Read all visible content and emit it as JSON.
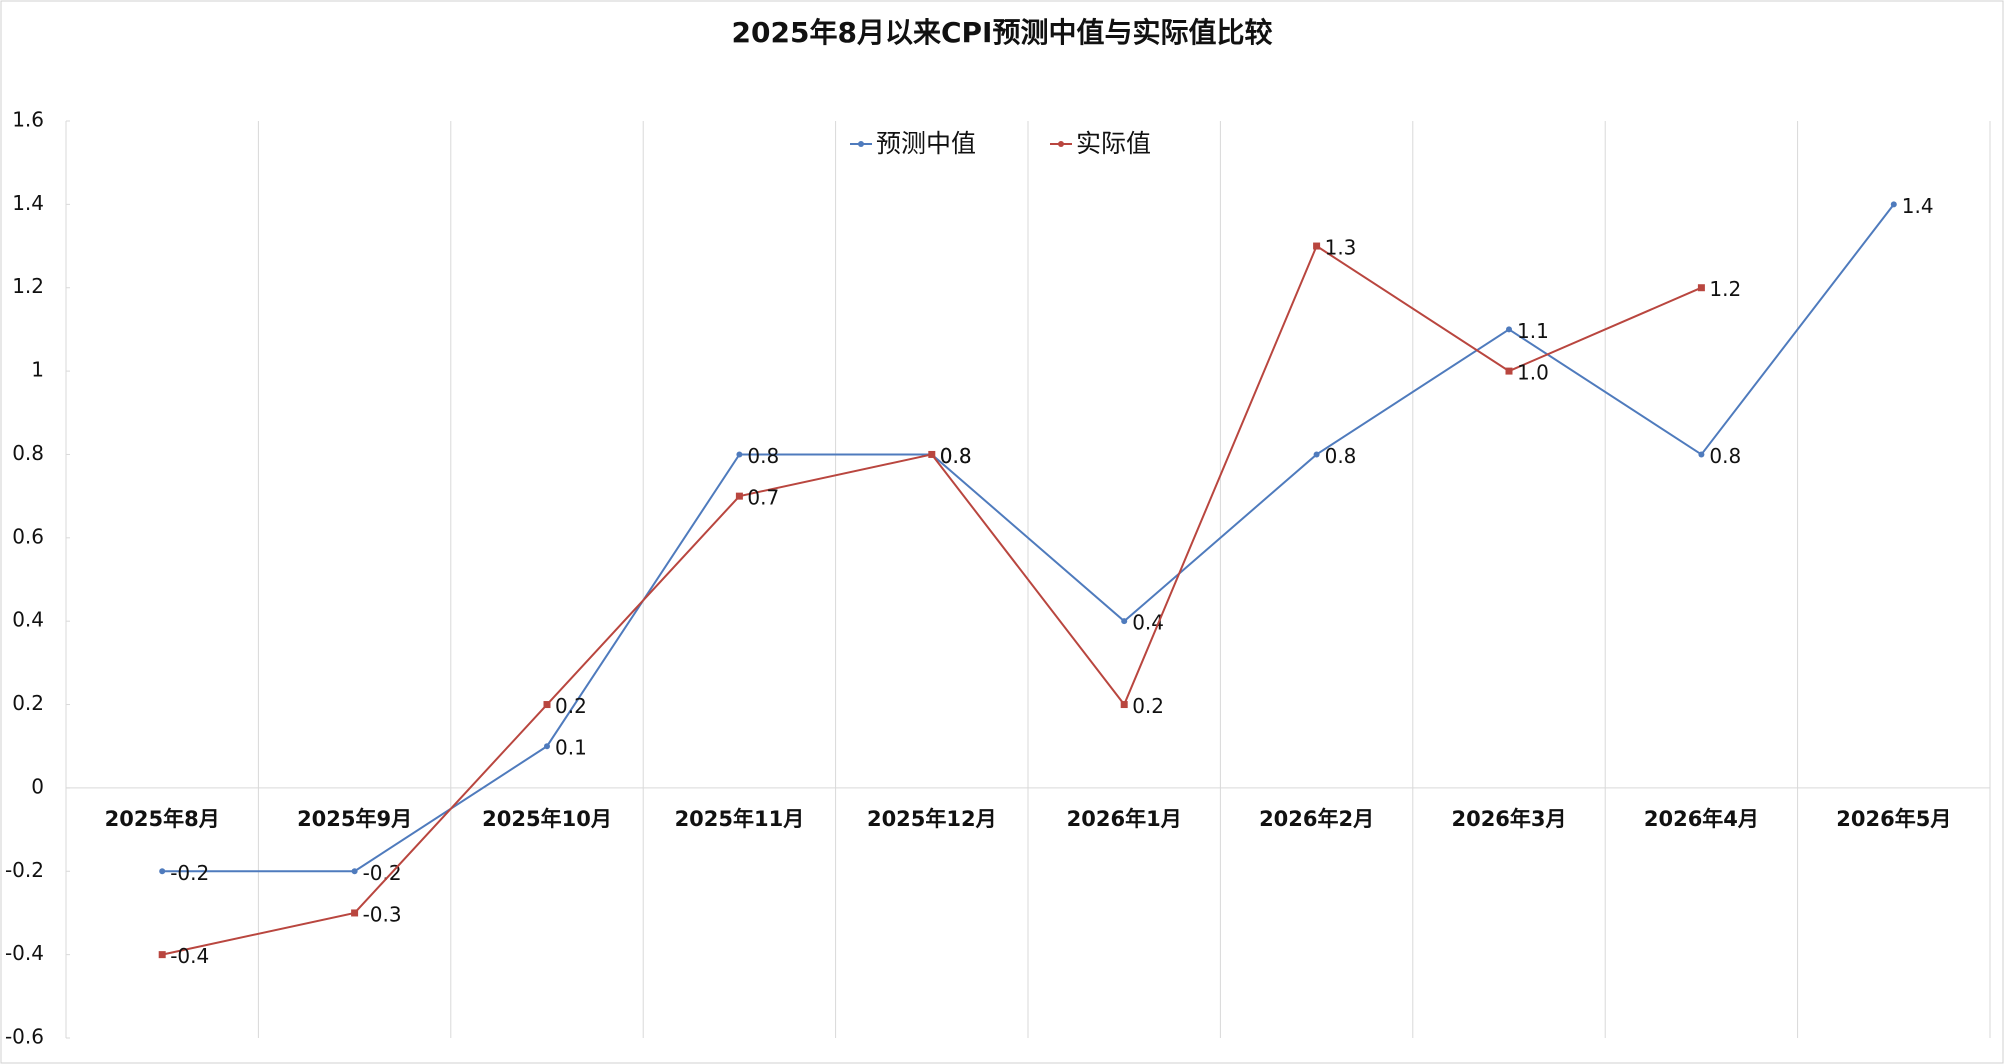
{
  "chart_data": {
    "type": "line",
    "title": "2025年8月以来CPI预测中值与实际值比较",
    "categories": [
      "2025年8月",
      "2025年9月",
      "2025年10月",
      "2025年11月",
      "2025年12月",
      "2026年1月",
      "2026年2月",
      "2026年3月",
      "2026年4月",
      "2026年5月"
    ],
    "series": [
      {
        "name": "预测中值",
        "color": "#4f7bbd",
        "values": [
          -0.2,
          -0.2,
          0.1,
          0.8,
          0.8,
          0.4,
          0.8,
          1.1,
          0.8,
          1.4
        ]
      },
      {
        "name": "实际值",
        "color": "#b9463f",
        "values": [
          -0.4,
          -0.3,
          0.2,
          0.7,
          0.8,
          0.2,
          1.3,
          1.0,
          1.2,
          null
        ],
        "value_labels": [
          "-0.4",
          "-0.3",
          "0.2",
          "0.7",
          "0.8",
          "0.2",
          "1.3",
          "1.0",
          "1.2",
          null
        ]
      }
    ],
    "ylim": [
      -0.6,
      1.6
    ],
    "yticks": [
      -0.6,
      -0.4,
      -0.2,
      0,
      0.2,
      0.4,
      0.6,
      0.8,
      1,
      1.2,
      1.4,
      1.6
    ],
    "grid": true,
    "legend": "top"
  }
}
